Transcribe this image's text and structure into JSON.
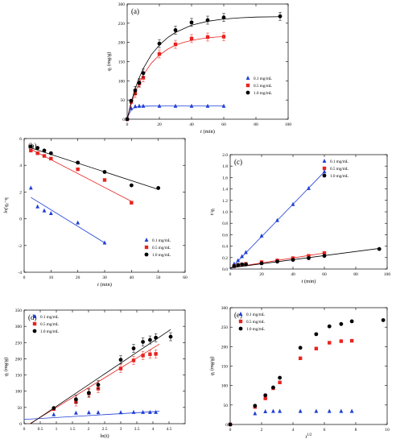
{
  "chart_data": [
    {
      "panel": "(a)",
      "type": "scatter",
      "xlabel": "t (min)",
      "ylabel": "q_t (mg/g)",
      "xlim": [
        0,
        100
      ],
      "ylim": [
        0,
        300
      ],
      "xticks": [
        0,
        20,
        40,
        60,
        80,
        100
      ],
      "yticks": [
        0,
        50,
        100,
        150,
        200,
        250,
        300
      ],
      "legend": "bottom-right",
      "series": [
        {
          "name": "0.1 mg/mL",
          "color": "#1f3fd6",
          "marker": "triangle",
          "x": [
            0,
            2.5,
            5,
            7.5,
            10,
            20,
            30,
            40,
            50,
            60
          ],
          "y": [
            0,
            28,
            33,
            34,
            34,
            34,
            34,
            34,
            34,
            34
          ],
          "fit_x": [
            0,
            1,
            2,
            3,
            4,
            5,
            6,
            8,
            10,
            15,
            20,
            30,
            40,
            50,
            60
          ],
          "fit_y": [
            0,
            12,
            20,
            26,
            29,
            31,
            32.5,
            33.5,
            34,
            34.2,
            34.3,
            34.3,
            34.3,
            34.3,
            34.3
          ]
        },
        {
          "name": "0.5 mg/mL",
          "color": "#e8231f",
          "marker": "square",
          "x": [
            0,
            2.5,
            5,
            7.5,
            10,
            20,
            30,
            40,
            50,
            60
          ],
          "y": [
            0,
            45,
            67,
            93,
            108,
            170,
            195,
            210,
            214,
            215
          ],
          "fit_x": [
            0,
            2,
            4,
            6,
            8,
            10,
            15,
            20,
            25,
            30,
            35,
            40,
            45,
            50,
            55,
            60
          ],
          "fit_y": [
            0,
            32,
            58,
            80,
            99,
            115,
            146,
            167,
            182,
            193,
            200,
            205,
            209,
            212,
            214,
            215
          ]
        },
        {
          "name": "1.0 mg/mL",
          "color": "#000000",
          "marker": "circle",
          "x": [
            0,
            2.5,
            5,
            7.5,
            10,
            20,
            30,
            40,
            50,
            60,
            95
          ],
          "y": [
            0,
            48,
            75,
            95,
            120,
            197,
            232,
            252,
            258,
            265,
            268
          ],
          "fit_x": [
            0,
            2,
            4,
            6,
            8,
            10,
            15,
            20,
            25,
            30,
            40,
            50,
            60,
            70,
            80,
            95
          ],
          "fit_y": [
            0,
            36,
            66,
            92,
            113,
            132,
            168,
            193,
            212,
            226,
            245,
            255,
            261,
            264,
            266,
            267
          ]
        }
      ]
    },
    {
      "panel": "(b)",
      "type": "scatter",
      "xlabel": "t (min)",
      "ylabel": "ln(q_e−q_t)",
      "xlim": [
        0,
        60
      ],
      "ylim": [
        -4,
        6
      ],
      "xticks": [
        0,
        10,
        20,
        30,
        40,
        50,
        60
      ],
      "yticks": [
        -4,
        -2,
        0,
        2,
        4,
        6
      ],
      "legend": "bottom-right",
      "series": [
        {
          "name": "0.1 mg/mL",
          "color": "#1f3fd6",
          "marker": "triangle",
          "x": [
            2.5,
            5,
            7.5,
            10,
            20,
            30
          ],
          "y": [
            2.3,
            0.9,
            0.6,
            0.4,
            -0.3,
            -1.8
          ],
          "fit_x": [
            2.5,
            30
          ],
          "fit_y": [
            1.6,
            -1.8
          ]
        },
        {
          "name": "0.5 mg/mL",
          "color": "#e8231f",
          "marker": "square",
          "x": [
            2.5,
            5,
            7.5,
            10,
            20,
            30,
            40
          ],
          "y": [
            5.1,
            4.9,
            4.7,
            4.5,
            3.7,
            2.9,
            1.2
          ],
          "fit_x": [
            2.5,
            40
          ],
          "fit_y": [
            5.2,
            1.3
          ]
        },
        {
          "name": "1.0 mg/mL",
          "color": "#000000",
          "marker": "circle",
          "x": [
            2.5,
            5,
            7.5,
            10,
            20,
            30,
            40,
            50
          ],
          "y": [
            5.4,
            5.3,
            5.1,
            4.9,
            4.2,
            3.5,
            2.5,
            2.3
          ],
          "fit_x": [
            2.5,
            50
          ],
          "fit_y": [
            5.3,
            2.2
          ]
        }
      ]
    },
    {
      "panel": "(c)",
      "type": "scatter",
      "xlabel": "t (min)",
      "ylabel": "t/q_t",
      "xlim": [
        0,
        100
      ],
      "ylim": [
        0,
        2.0
      ],
      "xticks": [
        0,
        20,
        40,
        60,
        80,
        100
      ],
      "yticks": [
        0.0,
        0.2,
        0.4,
        0.6,
        0.8,
        1.0,
        1.2,
        1.4,
        1.6,
        1.8,
        2.0
      ],
      "legend": "top-right",
      "series": [
        {
          "name": "0.1 mg/mL",
          "color": "#1f3fd6",
          "marker": "triangle",
          "x": [
            2.5,
            5,
            7.5,
            10,
            20,
            30,
            40,
            50,
            60
          ],
          "y": [
            0.09,
            0.15,
            0.22,
            0.29,
            0.58,
            0.85,
            1.13,
            1.41,
            1.7
          ],
          "fit_x": [
            0,
            60
          ],
          "fit_y": [
            0.0,
            1.7
          ]
        },
        {
          "name": "0.5 mg/mL",
          "color": "#e8231f",
          "marker": "square",
          "x": [
            2.5,
            5,
            7.5,
            10,
            20,
            30,
            40,
            50,
            60
          ],
          "y": [
            0.05,
            0.07,
            0.08,
            0.09,
            0.12,
            0.15,
            0.19,
            0.23,
            0.28
          ],
          "fit_x": [
            0,
            60
          ],
          "fit_y": [
            0.02,
            0.28
          ]
        },
        {
          "name": "1.0 mg/mL",
          "color": "#000000",
          "marker": "circle",
          "x": [
            2.5,
            5,
            7.5,
            10,
            20,
            30,
            40,
            50,
            60,
            95
          ],
          "y": [
            0.05,
            0.07,
            0.08,
            0.08,
            0.1,
            0.13,
            0.16,
            0.19,
            0.23,
            0.35
          ],
          "fit_x": [
            0,
            95
          ],
          "fit_y": [
            0.02,
            0.36
          ]
        }
      ]
    },
    {
      "panel": "(d)",
      "type": "scatter",
      "xlabel": "ln(t)",
      "ylabel": "q_t (mg/g)",
      "xlim": [
        0,
        5
      ],
      "ylim": [
        0,
        350
      ],
      "xticks": [
        0,
        0.5,
        1,
        1.5,
        2,
        2.5,
        3,
        3.5,
        4,
        4.5
      ],
      "yticks": [
        0,
        50,
        100,
        150,
        200,
        250,
        300,
        350
      ],
      "legend": "top-left",
      "series": [
        {
          "name": "0.1 mg/mL",
          "color": "#1f3fd6",
          "marker": "triangle",
          "x": [
            0.92,
            1.61,
            2.01,
            2.3,
            3.0,
            3.4,
            3.69,
            3.91,
            4.09
          ],
          "y": [
            28,
            33,
            34,
            34,
            34,
            35,
            35,
            35,
            35
          ],
          "fit_x": [
            0,
            4.2
          ],
          "fit_y": [
            13,
            38
          ]
        },
        {
          "name": "0.5 mg/mL",
          "color": "#e8231f",
          "marker": "square",
          "x": [
            0.92,
            1.61,
            2.01,
            2.3,
            3.0,
            3.4,
            3.69,
            3.91,
            4.09
          ],
          "y": [
            45,
            67,
            93,
            108,
            170,
            195,
            210,
            214,
            215
          ],
          "fit_x": [
            0.05,
            4.2
          ],
          "fit_y": [
            -8,
            245
          ]
        },
        {
          "name": "1.0 mg/mL",
          "color": "#000000",
          "marker": "circle",
          "x": [
            0.92,
            1.61,
            2.01,
            2.3,
            3.0,
            3.4,
            3.69,
            3.91,
            4.09,
            4.55
          ],
          "y": [
            48,
            75,
            95,
            120,
            197,
            232,
            252,
            258,
            265,
            268
          ],
          "fit_x": [
            0.05,
            4.55
          ],
          "fit_y": [
            -10,
            290
          ]
        }
      ]
    },
    {
      "panel": "(e)",
      "type": "scatter",
      "xlabel": "t^1/2",
      "ylabel": "q_t (mg/g)",
      "xlim": [
        0,
        10
      ],
      "ylim": [
        0,
        300
      ],
      "xticks": [
        0,
        2,
        4,
        6,
        8,
        10
      ],
      "yticks": [
        0,
        50,
        100,
        150,
        200,
        250,
        300
      ],
      "legend": "top-left",
      "series": [
        {
          "name": "0.1 mg/mL",
          "color": "#1f3fd6",
          "marker": "triangle",
          "x": [
            0,
            1.58,
            2.24,
            2.74,
            3.16,
            4.47,
            5.48,
            6.32,
            7.07,
            7.75
          ],
          "y": [
            0,
            28,
            33,
            34,
            34,
            34,
            34,
            34,
            34,
            34
          ]
        },
        {
          "name": "0.5 mg/mL",
          "color": "#e8231f",
          "marker": "square",
          "x": [
            0,
            1.58,
            2.24,
            2.74,
            3.16,
            4.47,
            5.48,
            6.32,
            7.07,
            7.75
          ],
          "y": [
            0,
            45,
            67,
            93,
            108,
            170,
            195,
            210,
            214,
            215
          ]
        },
        {
          "name": "1.0 mg/mL",
          "color": "#000000",
          "marker": "circle",
          "x": [
            0,
            1.58,
            2.24,
            2.74,
            3.16,
            4.47,
            5.48,
            6.32,
            7.07,
            7.75,
            9.75
          ],
          "y": [
            0,
            48,
            75,
            95,
            120,
            197,
            232,
            252,
            258,
            265,
            268
          ]
        }
      ]
    }
  ]
}
